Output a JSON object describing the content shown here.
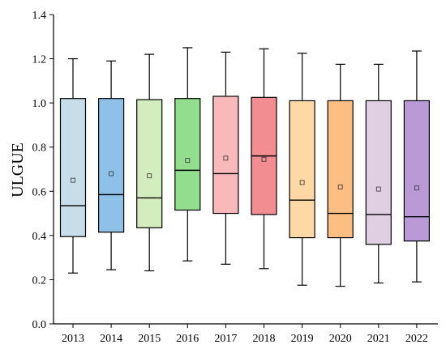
{
  "chart_data": {
    "type": "box",
    "title": "",
    "xlabel": "",
    "ylabel": "ULGUE",
    "ylim": [
      0.0,
      1.4
    ],
    "yticks": [
      "0.0",
      "0.2",
      "0.4",
      "0.6",
      "0.8",
      "1.0",
      "1.2",
      "1.4"
    ],
    "grid": false,
    "legend": "none",
    "categories": [
      "2013",
      "2014",
      "2015",
      "2016",
      "2017",
      "2018",
      "2019",
      "2020",
      "2021",
      "2022"
    ],
    "boxes": [
      {
        "category": "2013",
        "min": 0.23,
        "q1": 0.395,
        "median": 0.535,
        "q3": 1.02,
        "max": 1.2,
        "mean": 0.65,
        "fill": "#c7dde9"
      },
      {
        "category": "2014",
        "min": 0.245,
        "q1": 0.415,
        "median": 0.585,
        "q3": 1.02,
        "max": 1.19,
        "mean": 0.68,
        "fill": "#8fc1e8"
      },
      {
        "category": "2015",
        "min": 0.24,
        "q1": 0.435,
        "median": 0.57,
        "q3": 1.015,
        "max": 1.22,
        "mean": 0.67,
        "fill": "#d4edbe"
      },
      {
        "category": "2016",
        "min": 0.285,
        "q1": 0.515,
        "median": 0.695,
        "q3": 1.02,
        "max": 1.25,
        "mean": 0.74,
        "fill": "#92dd8e"
      },
      {
        "category": "2017",
        "min": 0.27,
        "q1": 0.5,
        "median": 0.68,
        "q3": 1.03,
        "max": 1.23,
        "mean": 0.75,
        "fill": "#f9b8ba"
      },
      {
        "category": "2018",
        "min": 0.25,
        "q1": 0.495,
        "median": 0.76,
        "q3": 1.025,
        "max": 1.245,
        "mean": 0.745,
        "fill": "#f28d91"
      },
      {
        "category": "2019",
        "min": 0.175,
        "q1": 0.39,
        "median": 0.56,
        "q3": 1.01,
        "max": 1.225,
        "mean": 0.64,
        "fill": "#fed9a6"
      },
      {
        "category": "2020",
        "min": 0.17,
        "q1": 0.39,
        "median": 0.5,
        "q3": 1.01,
        "max": 1.175,
        "mean": 0.62,
        "fill": "#fdbe83"
      },
      {
        "category": "2021",
        "min": 0.185,
        "q1": 0.36,
        "median": 0.495,
        "q3": 1.01,
        "max": 1.175,
        "mean": 0.61,
        "fill": "#e0cee3"
      },
      {
        "category": "2022",
        "min": 0.19,
        "q1": 0.375,
        "median": 0.485,
        "q3": 1.01,
        "max": 1.235,
        "mean": 0.615,
        "fill": "#b99ad6"
      }
    ]
  }
}
